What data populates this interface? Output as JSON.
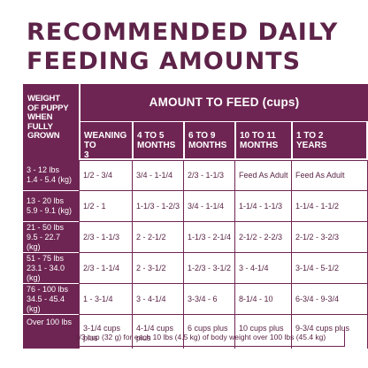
{
  "title": {
    "line1": "RECOMMENDED DAILY",
    "line2": "FEEDING AMOUNTS"
  },
  "table": {
    "weight_header": [
      "WEIGHT",
      "OF PUPPY",
      "WHEN",
      "FULLY",
      "GROWN"
    ],
    "amount_header": "AMOUNT TO FEED (cups)",
    "columns": [
      [
        "WEANING TO",
        "3 MONTHS"
      ],
      [
        "4 TO 5",
        "MONTHS"
      ],
      [
        "6 TO 9",
        "MONTHS"
      ],
      [
        "10 TO 11",
        "MONTHS"
      ],
      [
        "1 TO 2",
        "YEARS"
      ]
    ],
    "rows": [
      {
        "weight": [
          "3 - 12 lbs",
          "1.4 - 5.4 (kg)"
        ],
        "values": [
          "1/2 - 3/4",
          "3/4 - 1-1/4",
          "2/3 - 1-1/3",
          "Feed As Adult",
          "Feed As Adult"
        ]
      },
      {
        "weight": [
          "13 - 20 lbs",
          "5.9 - 9.1 (kg)"
        ],
        "values": [
          "1/2 - 1",
          "1-1/3 - 1-2/3",
          "3/4 - 1-1/4",
          "1-1/4 - 1-1/3",
          "1-1/4 - 1-1/2"
        ]
      },
      {
        "weight": [
          "21 - 50 lbs",
          "9.5 - 22.7 (kg)"
        ],
        "values": [
          "2/3 - 1-1/3",
          "2 - 2-1/2",
          "1-1/3 - 2-1/4",
          "2-1/2 - 2-2/3",
          "2-1/2 - 3-2/3"
        ]
      },
      {
        "weight": [
          "51 - 75 lbs",
          "23.1 - 34.0 (kg)"
        ],
        "values": [
          "2/3 - 1-1/4",
          "2 - 3-1/2",
          "1-2/3 - 3-1/2",
          "3 - 4-1/4",
          "3-1/4 - 5-1/2"
        ]
      },
      {
        "weight": [
          "76 - 100 lbs",
          "34.5 - 45.4 (kg)"
        ],
        "values": [
          "1 - 3-1/4",
          "3 - 4-1/4",
          "3-3/4 - 6",
          "8-1/4 - 10",
          "6-3/4 - 9-3/4"
        ]
      },
      {
        "weight": [
          "Over 100 lbs",
          "Over 45.4 (kg)"
        ],
        "values": [
          "3-1/4 cups plus",
          "4-1/4 cups plus",
          "6 cups plus",
          "10 cups plus",
          "9-3/4 cups plus"
        ]
      }
    ],
    "note": "1/3 cup (32 g) for each 10 lbs (4.5 kg) of body weight over 100 lbs (45.4 kg)"
  },
  "colors": {
    "brand": "#6f2553",
    "title": "#5e2348",
    "text": "#5a2545"
  }
}
